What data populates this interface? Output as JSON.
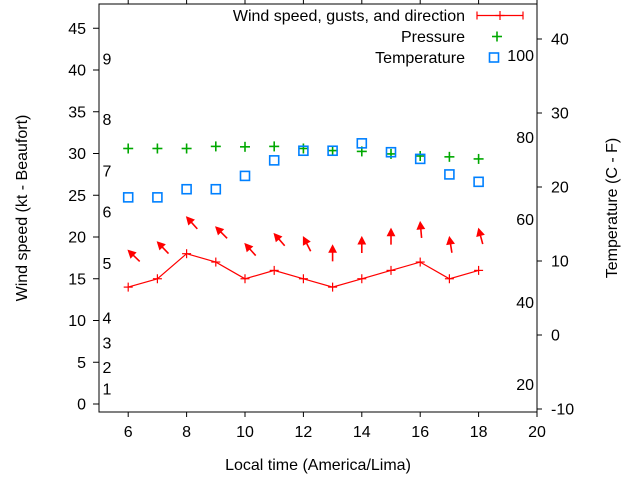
{
  "chart": {
    "background": "#ffffff",
    "axis_color": "#000000",
    "xlabel": "Local time (America/Lima)",
    "ylabel_left": "Wind speed (kt - Beaufort)",
    "ylabel_right": "Temperature (C - F)",
    "legend": [
      {
        "label": "Wind speed, gusts, and direction",
        "series": "wind",
        "color": "#ff0000",
        "marker": "line-plus"
      },
      {
        "label": "Pressure",
        "series": "pressure",
        "color": "#00a800",
        "marker": "plus"
      },
      {
        "label": "Temperature",
        "series": "temperature",
        "color": "#0080ff",
        "marker": "open-square"
      }
    ]
  },
  "chart_data": {
    "type": "line",
    "x": [
      6,
      7,
      8,
      9,
      10,
      11,
      12,
      13,
      14,
      15,
      16,
      17,
      18
    ],
    "x_range": [
      5,
      20
    ],
    "x_ticks": [
      6,
      8,
      10,
      12,
      14,
      16,
      18,
      20
    ],
    "left_axis": {
      "label": "Wind speed (kt - Beaufort)",
      "ticks": [
        0,
        5,
        10,
        15,
        20,
        25,
        30,
        35,
        40,
        45
      ],
      "range": [
        -1,
        47.9
      ]
    },
    "right_axis": {
      "label": "Temperature (C - F)",
      "ticks": [
        -10,
        0,
        10,
        20,
        30,
        40
      ],
      "range": [
        -10.4,
        44.7
      ]
    },
    "beaufort_labels": [
      {
        "label": "1",
        "kt": 1.8
      },
      {
        "label": "2",
        "kt": 4.4
      },
      {
        "label": "3",
        "kt": 7.3
      },
      {
        "label": "4",
        "kt": 10.3
      },
      {
        "label": "5",
        "kt": 16.8
      },
      {
        "label": "6",
        "kt": 23.0
      },
      {
        "label": "7",
        "kt": 27.9
      },
      {
        "label": "8",
        "kt": 34.1
      },
      {
        "label": "9",
        "kt": 41.3
      }
    ],
    "fahrenheit_labels": [
      {
        "label": "20",
        "c": -6.7
      },
      {
        "label": "40",
        "c": 4.4
      },
      {
        "label": "60",
        "c": 15.6
      },
      {
        "label": "80",
        "c": 26.7
      },
      {
        "label": "100",
        "c": 37.8
      }
    ],
    "series": [
      {
        "name": "Wind speed, gusts, and direction",
        "axis": "left",
        "units": "kt",
        "values": [
          14,
          15,
          18,
          17,
          15,
          16,
          15,
          14,
          15,
          16,
          17,
          15,
          16
        ]
      },
      {
        "name": "Pressure",
        "axis": "left",
        "units": "plotted on left axis (inHg)",
        "values": [
          30.6,
          30.6,
          30.6,
          30.85,
          30.8,
          30.85,
          30.6,
          30.35,
          30.25,
          29.95,
          29.7,
          29.6,
          29.35
        ]
      },
      {
        "name": "Temperature",
        "axis": "right",
        "units": "C",
        "values": [
          18.6,
          18.6,
          19.7,
          19.7,
          21.5,
          23.6,
          24.9,
          24.9,
          25.9,
          24.7,
          23.8,
          21.7,
          20.7
        ]
      }
    ],
    "gust_arrows": [
      {
        "hour": 6,
        "tip_kt": 18.4,
        "angle_deg": -46
      },
      {
        "hour": 7,
        "tip_kt": 19.4,
        "angle_deg": -44
      },
      {
        "hour": 8,
        "tip_kt": 22.4,
        "angle_deg": -42
      },
      {
        "hour": 9,
        "tip_kt": 21.2,
        "angle_deg": -45
      },
      {
        "hour": 10,
        "tip_kt": 19.2,
        "angle_deg": -42
      },
      {
        "hour": 11,
        "tip_kt": 20.4,
        "angle_deg": -41
      },
      {
        "hour": 12,
        "tip_kt": 20.0,
        "angle_deg": -27
      },
      {
        "hour": 13,
        "tip_kt": 19.0,
        "angle_deg": 0
      },
      {
        "hour": 14,
        "tip_kt": 20.0,
        "angle_deg": 0
      },
      {
        "hour": 15,
        "tip_kt": 21.0,
        "angle_deg": 0
      },
      {
        "hour": 16,
        "tip_kt": 21.8,
        "angle_deg": -5
      },
      {
        "hour": 17,
        "tip_kt": 20.0,
        "angle_deg": -9
      },
      {
        "hour": 18,
        "tip_kt": 21.0,
        "angle_deg": -15
      }
    ],
    "legend_position": "top-right-inside",
    "grid": false
  }
}
